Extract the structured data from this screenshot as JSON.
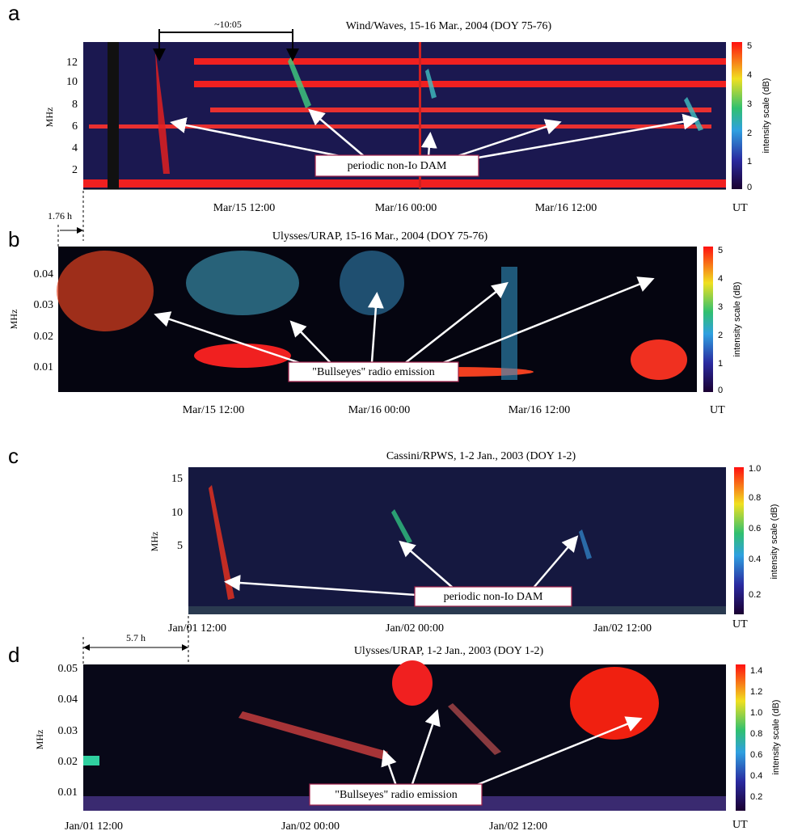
{
  "panels": [
    {
      "label": "a",
      "title": "Wind/Waves, 15-16 Mar., 2004 (DOY 75-76)",
      "y_axis_label": "MHz",
      "y_ticks": [
        "12",
        "10",
        "8",
        "6",
        "4",
        "2"
      ],
      "x_ticks": [
        "Mar/15 12:00",
        "Mar/16 00:00",
        "Mar/16 12:00"
      ],
      "x_unit": "UT",
      "colorbar_label": "intensity scale (dB)",
      "colorbar_ticks": [
        "5",
        "4",
        "3",
        "2",
        "1",
        "0"
      ],
      "annotation": "periodic non-Io DAM",
      "interval_label": "~10:05"
    },
    {
      "label": "b",
      "title": "Ulysses/URAP, 15-16 Mar., 2004 (DOY 75-76)",
      "y_axis_label": "MHz",
      "y_ticks": [
        "0.04",
        "0.03",
        "0.02",
        "0.01"
      ],
      "x_ticks": [
        "Mar/15 12:00",
        "Mar/16 00:00",
        "Mar/16 12:00"
      ],
      "x_unit": "UT",
      "colorbar_label": "intensity scale (dB)",
      "colorbar_ticks": [
        "5",
        "4",
        "3",
        "2",
        "1",
        "0"
      ],
      "annotation": "\"Bullseyes\" radio emission",
      "interval_label": "1.76 h"
    },
    {
      "label": "c",
      "title": "Cassini/RPWS, 1-2 Jan., 2003 (DOY 1-2)",
      "y_axis_label": "MHz",
      "y_ticks": [
        "15",
        "10",
        "5"
      ],
      "x_ticks": [
        "Jan/01 12:00",
        "Jan/02 00:00",
        "Jan/02 12:00"
      ],
      "x_unit": "UT",
      "colorbar_label": "intensity scale (dB)",
      "colorbar_ticks": [
        "1.0",
        "0.8",
        "0.6",
        "0.4",
        "0.2"
      ],
      "annotation": "periodic non-Io DAM"
    },
    {
      "label": "d",
      "title": "Ulysses/URAP, 1-2 Jan., 2003 (DOY 1-2)",
      "y_axis_label": "MHz",
      "y_ticks": [
        "0.05",
        "0.04",
        "0.03",
        "0.02",
        "0.01"
      ],
      "x_ticks": [
        "Jan/01 12:00",
        "Jan/02 00:00",
        "Jan/02 12:00"
      ],
      "x_unit": "UT",
      "colorbar_label": "intensity scale (dB)",
      "colorbar_ticks": [
        "1.4",
        "1.2",
        "1.0",
        "0.8",
        "0.6",
        "0.4",
        "0.2"
      ],
      "annotation": "\"Bullseyes\" radio emission",
      "interval_label": "5.7 h"
    }
  ]
}
